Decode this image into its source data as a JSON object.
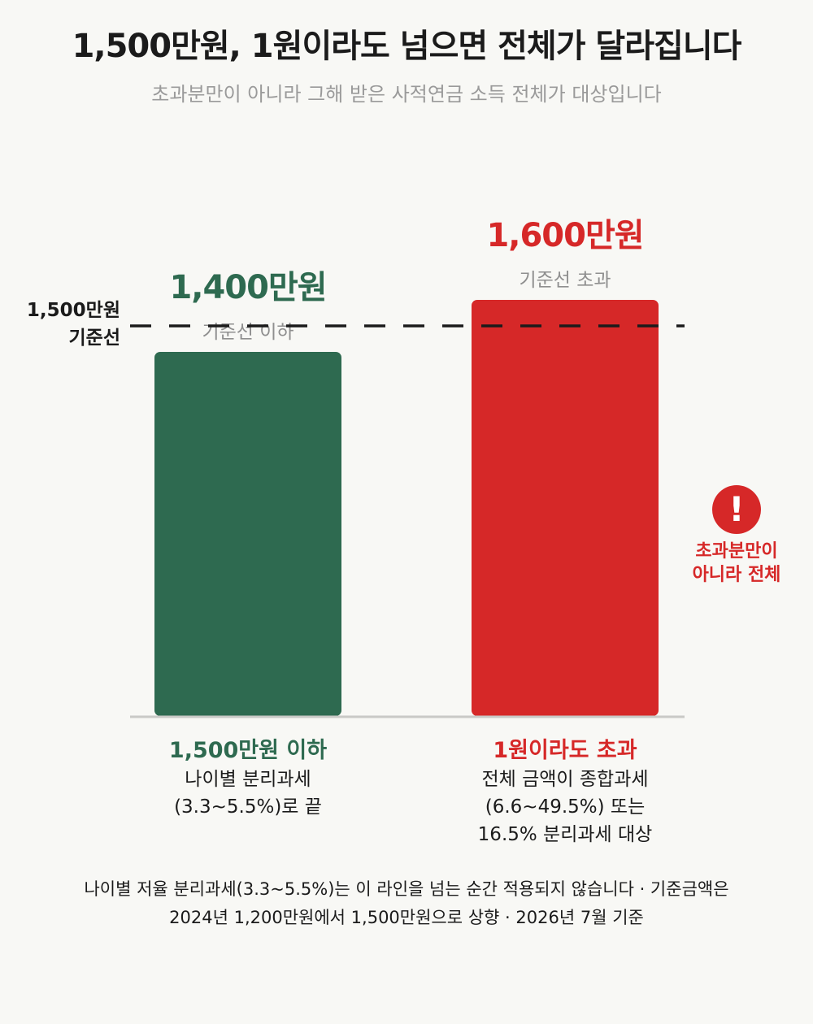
{
  "header": {
    "title": "1,500만원, 1원이라도 넘으면 전체가 달라집니다",
    "subtitle": "초과분만이 아니라 그해 받은 사적연금 소득 전체가 대상입니다"
  },
  "chart_data": {
    "type": "bar",
    "categories": [
      "기준선 이하",
      "기준선 초과"
    ],
    "values": [
      1400,
      1600
    ],
    "unit": "만원",
    "value_labels": [
      "1,400만원",
      "1,600만원"
    ],
    "bar_sublabels": [
      "기준선 이하",
      "기준선 초과"
    ],
    "colors": [
      "#2e6a50",
      "#d62828"
    ],
    "threshold": {
      "value": 1500,
      "label_line1": "1,500만원",
      "label_line2": "기준선",
      "style": "dashed"
    },
    "ylim": [
      0,
      1700
    ],
    "grid": false,
    "category_notes": [
      {
        "title": "1,500만원 이하",
        "color": "#2e6a50",
        "lines": [
          "나이별 분리과세",
          "(3.3~5.5%)로 끝"
        ]
      },
      {
        "title": "1원이라도 초과",
        "color": "#d62828",
        "lines": [
          "전체 금액이 종합과세",
          "(6.6~49.5%) 또는",
          "16.5% 분리과세 대상"
        ]
      }
    ],
    "annotation": {
      "icon": "exclamation-icon",
      "lines": [
        "초과분만이",
        "아니라 전체"
      ]
    }
  },
  "footnote": {
    "line1": "나이별 저율 분리과세(3.3~5.5%)는 이 라인을 넘는 순간 적용되지 않습니다 · 기준금액은",
    "line2": "2024년 1,200만원에서 1,500만원으로 상향 · 2026년 7월 기준"
  }
}
